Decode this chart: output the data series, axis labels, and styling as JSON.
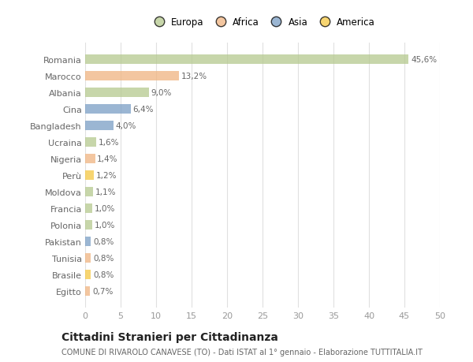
{
  "categories": [
    "Romania",
    "Marocco",
    "Albania",
    "Cina",
    "Bangladesh",
    "Ucraina",
    "Nigeria",
    "Perù",
    "Moldova",
    "Francia",
    "Polonia",
    "Pakistan",
    "Tunisia",
    "Brasile",
    "Egitto"
  ],
  "values": [
    45.6,
    13.2,
    9.0,
    6.4,
    4.0,
    1.6,
    1.4,
    1.2,
    1.1,
    1.0,
    1.0,
    0.8,
    0.8,
    0.8,
    0.7
  ],
  "labels": [
    "45,6%",
    "13,2%",
    "9,0%",
    "6,4%",
    "4,0%",
    "1,6%",
    "1,4%",
    "1,2%",
    "1,1%",
    "1,0%",
    "1,0%",
    "0,8%",
    "0,8%",
    "0,8%",
    "0,7%"
  ],
  "colors": [
    "#b5c98e",
    "#f0b480",
    "#b5c98e",
    "#7a9ec5",
    "#7a9ec5",
    "#b5c98e",
    "#f0b480",
    "#f5c842",
    "#b5c98e",
    "#b5c98e",
    "#b5c98e",
    "#7a9ec5",
    "#f0b480",
    "#f5c842",
    "#f0b480"
  ],
  "legend_labels": [
    "Europa",
    "Africa",
    "Asia",
    "America"
  ],
  "legend_colors": [
    "#b5c98e",
    "#f0b480",
    "#7a9ec5",
    "#f5c842"
  ],
  "title": "Cittadini Stranieri per Cittadinanza",
  "subtitle": "COMUNE DI RIVAROLO CANAVESE (TO) - Dati ISTAT al 1° gennaio - Elaborazione TUTTITALIA.IT",
  "xlim": [
    0,
    50
  ],
  "xticks": [
    0,
    5,
    10,
    15,
    20,
    25,
    30,
    35,
    40,
    45,
    50
  ],
  "background_color": "#ffffff",
  "grid_color": "#e0e0e0",
  "bar_height": 0.55,
  "label_fontsize": 7.5,
  "ytick_fontsize": 8,
  "xtick_fontsize": 8,
  "legend_fontsize": 8.5,
  "title_fontsize": 10,
  "subtitle_fontsize": 7
}
